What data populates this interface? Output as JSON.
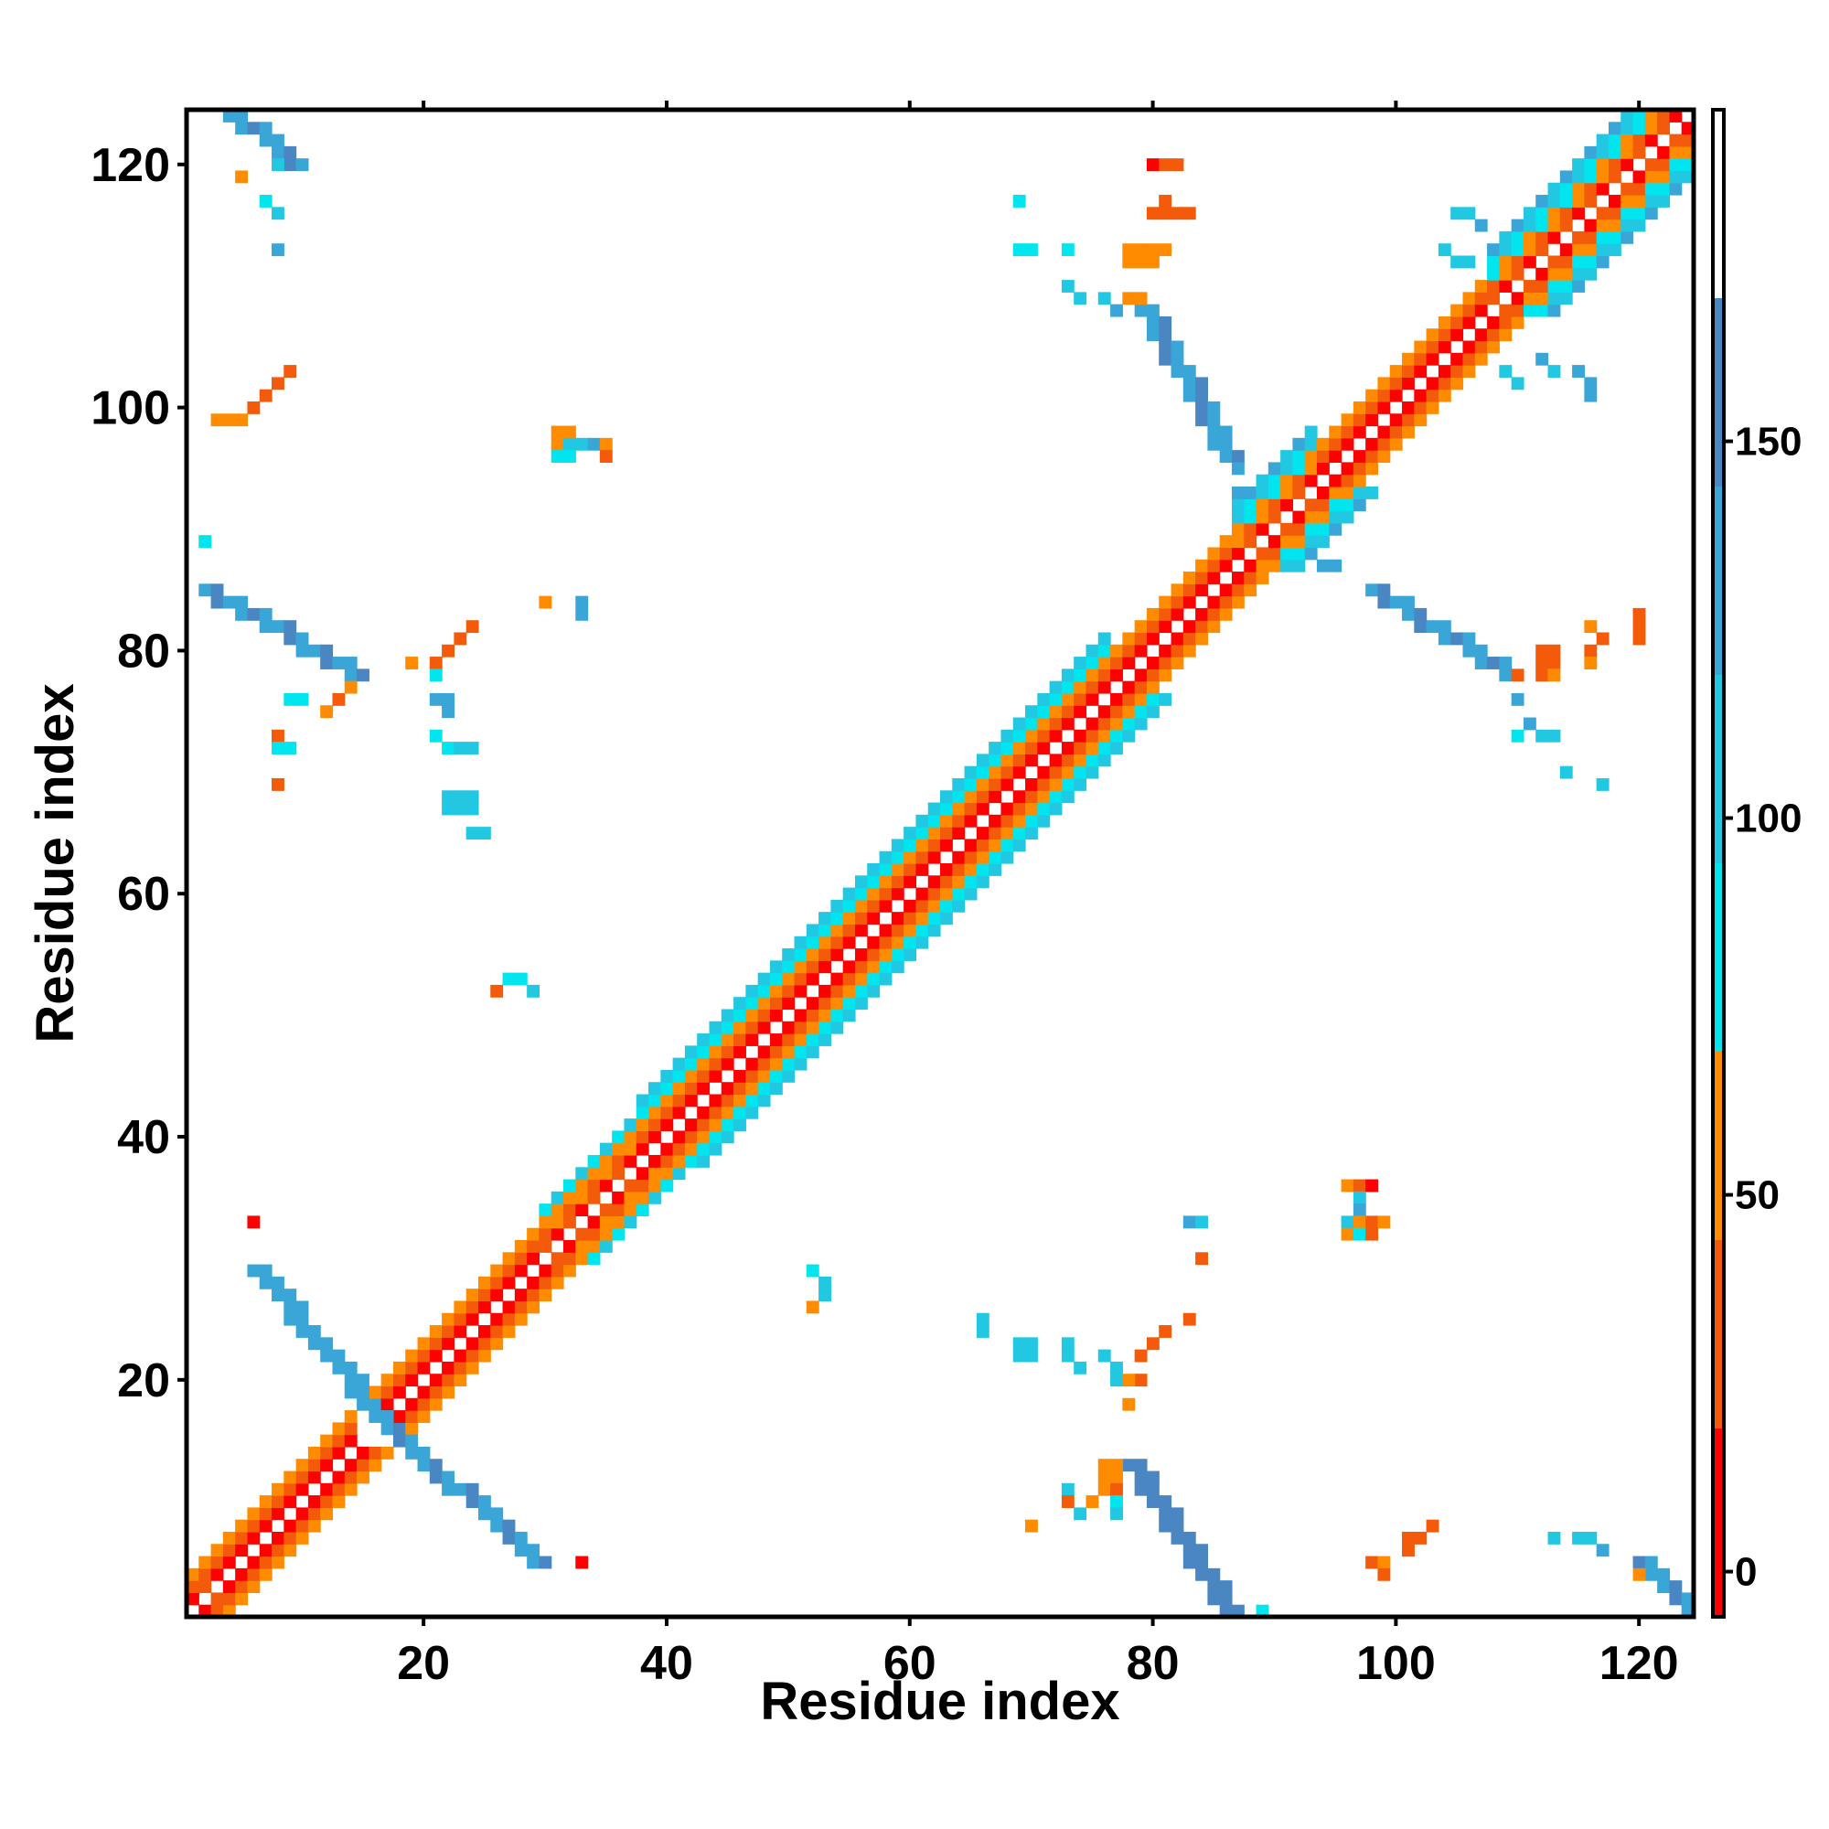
{
  "chart_data": {
    "type": "heatmap",
    "title": "",
    "xlabel": "Residue index",
    "ylabel": "Residue index",
    "xlim": [
      0.5,
      124.5
    ],
    "ylim": [
      0.5,
      124.5
    ],
    "x_ticks": [
      20,
      40,
      60,
      80,
      100,
      120
    ],
    "y_ticks": [
      20,
      40,
      60,
      80,
      100,
      120
    ],
    "colorbar": {
      "ticks": [
        0,
        50,
        100,
        150
      ],
      "range": [
        -6,
        194
      ],
      "stops": [
        {
          "from": -6,
          "to": 19,
          "color": "#ff0000"
        },
        {
          "from": 19,
          "to": 44,
          "color": "#f35a0a"
        },
        {
          "from": 44,
          "to": 69,
          "color": "#ff8c00"
        },
        {
          "from": 69,
          "to": 94,
          "color": "#00e5ee"
        },
        {
          "from": 94,
          "to": 119,
          "color": "#22c8e2"
        },
        {
          "from": 119,
          "to": 144,
          "color": "#3aa6d8"
        },
        {
          "from": 144,
          "to": 169,
          "color": "#4a86c2"
        },
        {
          "from": 169,
          "to": 194,
          "color": "#ffffff"
        }
      ]
    },
    "diagonal_pattern": [
      {
        "offset": 1,
        "value": 15
      },
      {
        "offset": 2,
        "value": 35
      },
      {
        "offset": 3,
        "value": 55
      },
      {
        "offset": 4,
        "value": 80
      },
      {
        "offset": 5,
        "value": 100
      }
    ],
    "diagonal_segments": [
      {
        "start": 1,
        "end": 14,
        "max_offset": 3,
        "value_shift": 0
      },
      {
        "start": 16,
        "end": 29,
        "max_offset": 3,
        "value_shift": 0
      },
      {
        "start": 30,
        "end": 37,
        "max_offset": 4,
        "value_shift": 10
      },
      {
        "start": 38,
        "end": 76,
        "max_offset": 5,
        "value_shift": 0
      },
      {
        "start": 77,
        "end": 86,
        "max_offset": 3,
        "value_shift": 0
      },
      {
        "start": 87,
        "end": 93,
        "max_offset": 5,
        "value_shift": 20
      },
      {
        "start": 94,
        "end": 107,
        "max_offset": 3,
        "value_shift": 0
      },
      {
        "start": 108,
        "end": 123,
        "max_offset": 5,
        "value_shift": 15
      }
    ],
    "line_segments": [
      {
        "from": [
          2,
          85
        ],
        "to": [
          14,
          78
        ],
        "width": 2,
        "value": 140
      },
      {
        "from": [
          6,
          29
        ],
        "to": [
          16,
          17
        ],
        "width": 2,
        "value": 125
      },
      {
        "from": [
          17,
          16
        ],
        "to": [
          29,
          5
        ],
        "width": 2,
        "value": 130
      },
      {
        "from": [
          78,
          13
        ],
        "to": [
          86,
          1
        ],
        "width": 2,
        "value": 145
      },
      {
        "from": [
          79,
          108
        ],
        "to": [
          86,
          96
        ],
        "width": 2,
        "value": 135
      },
      {
        "from": [
          98,
          85
        ],
        "to": [
          109,
          78
        ],
        "width": 2,
        "value": 140
      },
      {
        "from": [
          3,
          125
        ],
        "to": [
          9,
          120
        ],
        "width": 2,
        "value": 130
      },
      {
        "from": [
          120,
          5
        ],
        "to": [
          124,
          1
        ],
        "width": 2,
        "value": 130
      }
    ],
    "points": [
      [
        3,
        99,
        45
      ],
      [
        4,
        99,
        45
      ],
      [
        5,
        99,
        45
      ],
      [
        6,
        100,
        40
      ],
      [
        7,
        101,
        25
      ],
      [
        8,
        102,
        20
      ],
      [
        9,
        103,
        25
      ],
      [
        2,
        89,
        90
      ],
      [
        9,
        76,
        85
      ],
      [
        10,
        76,
        85
      ],
      [
        12,
        75,
        45
      ],
      [
        13,
        76,
        40
      ],
      [
        14,
        77,
        50
      ],
      [
        8,
        73,
        30
      ],
      [
        8,
        72,
        90
      ],
      [
        9,
        72,
        90
      ],
      [
        8,
        69,
        35
      ],
      [
        7,
        117,
        90
      ],
      [
        8,
        116,
        95
      ],
      [
        8,
        113,
        120
      ],
      [
        5,
        119,
        45
      ],
      [
        8,
        120,
        95
      ],
      [
        19,
        79,
        50
      ],
      [
        21,
        79,
        30
      ],
      [
        22,
        80,
        25
      ],
      [
        23,
        81,
        30
      ],
      [
        24,
        82,
        20
      ],
      [
        21,
        78,
        90
      ],
      [
        21,
        76,
        120
      ],
      [
        22,
        76,
        120
      ],
      [
        22,
        75,
        140
      ],
      [
        21,
        73,
        90
      ],
      [
        22,
        72,
        90
      ],
      [
        23,
        72,
        100
      ],
      [
        24,
        72,
        110
      ],
      [
        22,
        68,
        95
      ],
      [
        23,
        68,
        95
      ],
      [
        24,
        68,
        95
      ],
      [
        22,
        67,
        95
      ],
      [
        23,
        67,
        95
      ],
      [
        24,
        67,
        95
      ],
      [
        24,
        65,
        95
      ],
      [
        25,
        65,
        95
      ],
      [
        31,
        98,
        50
      ],
      [
        32,
        98,
        60
      ],
      [
        31,
        97,
        55
      ],
      [
        32,
        97,
        95
      ],
      [
        33,
        97,
        95
      ],
      [
        34,
        97,
        120
      ],
      [
        35,
        97,
        45
      ],
      [
        31,
        96,
        90
      ],
      [
        32,
        96,
        90
      ],
      [
        35,
        96,
        40
      ],
      [
        30,
        84,
        55
      ],
      [
        33,
        84,
        120
      ],
      [
        33,
        83,
        120
      ],
      [
        26,
        52,
        40
      ],
      [
        27,
        53,
        90
      ],
      [
        28,
        53,
        90
      ],
      [
        29,
        52,
        100
      ],
      [
        3,
        2,
        40
      ],
      [
        2,
        3,
        35
      ],
      [
        33,
        5,
        10
      ],
      [
        6,
        33,
        15
      ],
      [
        52,
        29,
        90
      ],
      [
        53,
        28,
        95
      ],
      [
        53,
        27,
        95
      ],
      [
        52,
        26,
        50
      ],
      [
        66,
        25,
        100
      ],
      [
        66,
        24,
        100
      ],
      [
        69,
        23,
        95
      ],
      [
        70,
        23,
        95
      ],
      [
        69,
        22,
        95
      ],
      [
        70,
        22,
        95
      ],
      [
        73,
        23,
        95
      ],
      [
        73,
        22,
        95
      ],
      [
        74,
        21,
        100
      ],
      [
        76,
        22,
        100
      ],
      [
        77,
        21,
        100
      ],
      [
        77,
        20,
        110
      ],
      [
        79,
        20,
        40
      ],
      [
        78,
        20,
        50
      ],
      [
        78,
        18,
        50
      ],
      [
        79,
        22,
        20
      ],
      [
        80,
        23,
        25
      ],
      [
        81,
        24,
        20
      ],
      [
        83,
        25,
        35
      ],
      [
        70,
        8,
        50
      ],
      [
        73,
        11,
        95
      ],
      [
        73,
        10,
        40
      ],
      [
        74,
        9,
        95
      ],
      [
        75,
        10,
        55
      ],
      [
        76,
        13,
        50
      ],
      [
        77,
        13,
        50
      ],
      [
        76,
        12,
        45
      ],
      [
        77,
        12,
        55
      ],
      [
        76,
        11,
        60
      ],
      [
        77,
        11,
        40
      ],
      [
        77,
        10,
        90
      ],
      [
        77,
        9,
        95
      ],
      [
        89,
        1,
        90
      ],
      [
        83,
        33,
        120
      ],
      [
        84,
        33,
        110
      ],
      [
        84,
        30,
        40
      ],
      [
        96,
        36,
        45
      ],
      [
        97,
        36,
        20
      ],
      [
        98,
        36,
        10
      ],
      [
        97,
        35,
        100
      ],
      [
        97,
        34,
        120
      ],
      [
        96,
        33,
        95
      ],
      [
        97,
        33,
        45
      ],
      [
        98,
        33,
        40
      ],
      [
        99,
        33,
        55
      ],
      [
        96,
        32,
        45
      ],
      [
        97,
        32,
        90
      ],
      [
        98,
        32,
        40
      ],
      [
        98,
        5,
        40
      ],
      [
        99,
        5,
        45
      ],
      [
        99,
        4,
        30
      ],
      [
        101,
        6,
        40
      ],
      [
        102,
        7,
        30
      ],
      [
        103,
        8,
        35
      ],
      [
        101,
        7,
        25
      ],
      [
        113,
        7,
        110
      ],
      [
        115,
        7,
        110
      ],
      [
        116,
        7,
        110
      ],
      [
        117,
        6,
        120
      ],
      [
        120,
        4,
        50
      ],
      [
        80,
        120,
        15
      ],
      [
        81,
        120,
        20
      ],
      [
        82,
        120,
        20
      ],
      [
        81,
        117,
        40
      ],
      [
        80,
        116,
        40
      ],
      [
        81,
        116,
        40
      ],
      [
        82,
        116,
        40
      ],
      [
        83,
        116,
        40
      ],
      [
        78,
        113,
        50
      ],
      [
        79,
        113,
        50
      ],
      [
        80,
        113,
        50
      ],
      [
        81,
        113,
        45
      ],
      [
        78,
        112,
        45
      ],
      [
        79,
        112,
        45
      ],
      [
        80,
        112,
        45
      ],
      [
        69,
        117,
        90
      ],
      [
        69,
        113,
        90
      ],
      [
        70,
        113,
        90
      ],
      [
        73,
        113,
        90
      ],
      [
        73,
        110,
        95
      ],
      [
        74,
        109,
        95
      ],
      [
        76,
        109,
        110
      ],
      [
        77,
        108,
        120
      ],
      [
        78,
        109,
        50
      ],
      [
        79,
        109,
        55
      ],
      [
        87,
        95,
        140
      ],
      [
        87,
        93,
        130
      ],
      [
        94,
        87,
        120
      ],
      [
        95,
        87,
        130
      ],
      [
        110,
        78,
        30
      ],
      [
        112,
        80,
        20
      ],
      [
        113,
        80,
        25
      ],
      [
        112,
        79,
        25
      ],
      [
        113,
        79,
        40
      ],
      [
        112,
        78,
        40
      ],
      [
        113,
        78,
        45
      ],
      [
        116,
        82,
        45
      ],
      [
        117,
        81,
        40
      ],
      [
        116,
        80,
        40
      ],
      [
        116,
        79,
        45
      ],
      [
        120,
        83,
        20
      ],
      [
        120,
        82,
        25
      ],
      [
        120,
        81,
        20
      ],
      [
        110,
        76,
        130
      ],
      [
        111,
        74,
        140
      ],
      [
        110,
        73,
        90
      ],
      [
        112,
        73,
        95
      ],
      [
        113,
        73,
        100
      ],
      [
        114,
        70,
        95
      ],
      [
        117,
        69,
        95
      ],
      [
        105,
        116,
        100
      ],
      [
        106,
        116,
        100
      ],
      [
        107,
        115,
        120
      ],
      [
        104,
        113,
        110
      ],
      [
        105,
        112,
        100
      ],
      [
        106,
        112,
        100
      ],
      [
        109,
        103,
        100
      ],
      [
        110,
        102,
        110
      ],
      [
        112,
        104,
        120
      ],
      [
        115,
        103,
        125
      ],
      [
        116,
        102,
        120
      ],
      [
        116,
        101,
        130
      ],
      [
        113,
        103,
        95
      ]
    ]
  }
}
